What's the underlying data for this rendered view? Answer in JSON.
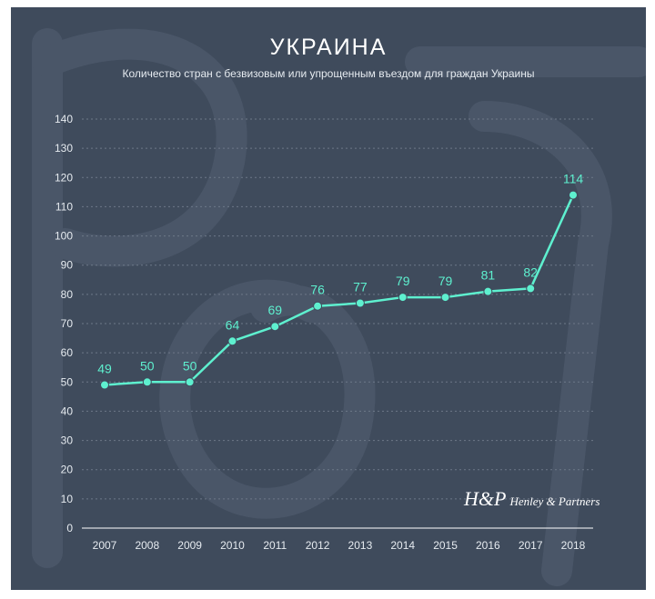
{
  "header": {
    "title": "УКРАИНА",
    "subtitle": "Количество стран с безвизовым или упрощенным въездом для граждан Украины"
  },
  "logo": {
    "mark": "H&P",
    "name": "Henley & Partners"
  },
  "colors": {
    "background": "#3f4b5c",
    "line": "#5ef0cf",
    "text": "#ffffff",
    "grid": "#6d7888"
  },
  "chart_data": {
    "type": "line",
    "x": [
      "2007",
      "2008",
      "2009",
      "2010",
      "2011",
      "2012",
      "2013",
      "2014",
      "2015",
      "2016",
      "2017",
      "2018"
    ],
    "values": [
      49,
      50,
      50,
      64,
      69,
      76,
      77,
      79,
      79,
      81,
      82,
      114
    ],
    "yticks": [
      0,
      10,
      20,
      30,
      40,
      50,
      60,
      70,
      80,
      90,
      100,
      110,
      120,
      130,
      140
    ],
    "ylim": [
      0,
      140
    ],
    "grid": true,
    "data_labels": true
  }
}
